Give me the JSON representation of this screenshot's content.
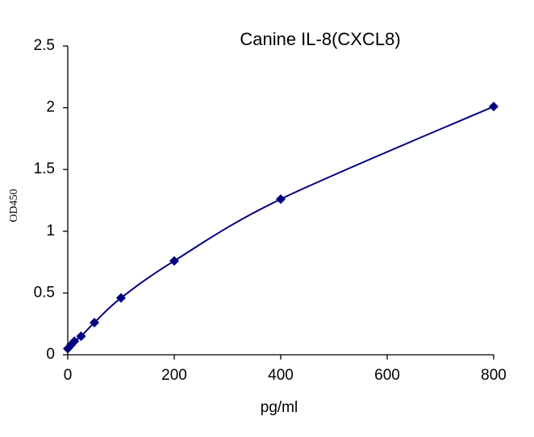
{
  "chart_data": {
    "type": "line",
    "title": "Canine IL-8(CXCL8)",
    "x_label": "pg/ml",
    "y_label": "OD450",
    "x": [
      0,
      6.25,
      12.5,
      25,
      50,
      100,
      200,
      400,
      800
    ],
    "series": [
      {
        "name": "OD450",
        "color": "#000080",
        "values": [
          0.05,
          0.08,
          0.11,
          0.15,
          0.26,
          0.46,
          0.76,
          1.26,
          2.01
        ]
      }
    ],
    "marker": "diamond",
    "smooth": true,
    "xlim": [
      0,
      800
    ],
    "xticks": [
      0,
      200,
      400,
      600,
      800
    ],
    "ylim": [
      0,
      2.5
    ],
    "yticks": [
      0,
      0.5,
      1,
      1.5,
      2,
      2.5
    ],
    "grid": false
  }
}
